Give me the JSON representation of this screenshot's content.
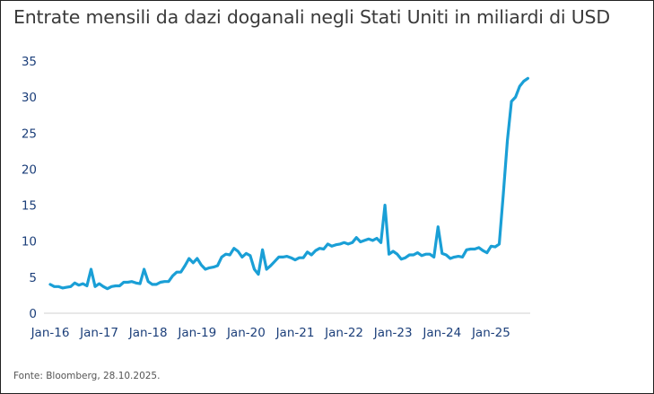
{
  "chart_data": {
    "type": "line",
    "title": "Entrate mensili da dazi doganali negli Stati Uniti in miliardi di USD",
    "source": "Fonte: Bloomberg, 28.10.2025.",
    "xlabel": "",
    "ylabel": "",
    "ylim": [
      0,
      35
    ],
    "yticks": [
      "0",
      "5",
      "10",
      "15",
      "20",
      "25",
      "30",
      "35"
    ],
    "xticks": [
      "Jan-16",
      "Jan-17",
      "Jan-18",
      "Jan-19",
      "Jan-20",
      "Jan-21",
      "Jan-22",
      "Jan-23",
      "Jan-24",
      "Jan-25"
    ],
    "x_start": "2016-01",
    "x_frequency": "monthly",
    "grid": false,
    "legend": "none",
    "line_color": "#1a9fd6",
    "axis_label_color": "#1c3f7a",
    "values": [
      4.0,
      3.7,
      3.7,
      3.5,
      3.6,
      3.7,
      4.2,
      3.9,
      4.1,
      3.8,
      6.1,
      3.7,
      4.1,
      3.7,
      3.4,
      3.7,
      3.8,
      3.8,
      4.3,
      4.3,
      4.4,
      4.2,
      4.1,
      6.1,
      4.4,
      4.0,
      4.0,
      4.3,
      4.4,
      4.4,
      5.2,
      5.7,
      5.7,
      6.6,
      7.6,
      7.0,
      7.6,
      6.7,
      6.1,
      6.3,
      6.4,
      6.6,
      7.8,
      8.2,
      8.1,
      9.0,
      8.6,
      7.8,
      8.3,
      8.0,
      6.1,
      5.4,
      8.8,
      6.1,
      6.6,
      7.2,
      7.8,
      7.8,
      7.9,
      7.7,
      7.4,
      7.7,
      7.7,
      8.5,
      8.1,
      8.7,
      9.0,
      8.9,
      9.6,
      9.3,
      9.5,
      9.6,
      9.8,
      9.6,
      9.8,
      10.5,
      9.9,
      10.1,
      10.3,
      10.1,
      10.4,
      9.8,
      15.0,
      8.2,
      8.6,
      8.2,
      7.5,
      7.7,
      8.1,
      8.1,
      8.4,
      8.0,
      8.2,
      8.2,
      7.8,
      12.0,
      8.3,
      8.1,
      7.6,
      7.8,
      7.9,
      7.8,
      8.8,
      8.9,
      8.9,
      9.1,
      8.7,
      8.4,
      9.3,
      9.2,
      9.6,
      16.5,
      24.0,
      29.4,
      30.0,
      31.5,
      32.2,
      32.6
    ]
  }
}
